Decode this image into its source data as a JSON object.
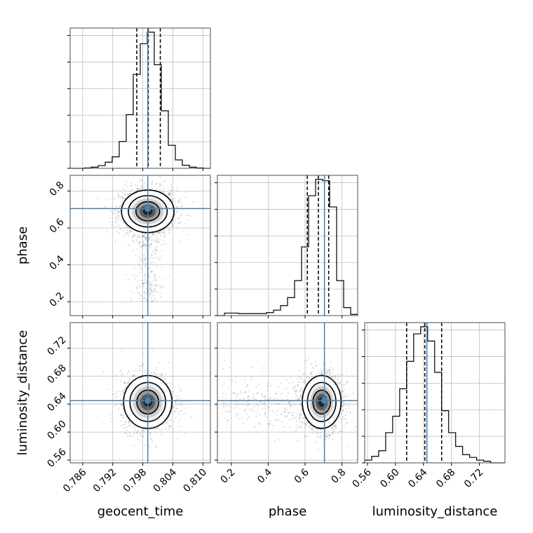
{
  "chart_data": {
    "type": "corner",
    "parameters": [
      "geocent_time",
      "phase",
      "luminosity_distance"
    ],
    "axis_labels": {
      "geocent_time": "geocent_time",
      "phase": "phase",
      "luminosity_distance": "luminosity_distance"
    },
    "ranges": {
      "geocent_time": [
        0.7835,
        0.8115
      ],
      "phase": [
        0.125,
        0.885
      ],
      "luminosity_distance": [
        0.556,
        0.7565
      ]
    },
    "ticks": {
      "geocent_time": {
        "values": [
          0.786,
          0.792,
          0.798,
          0.804,
          0.81
        ],
        "labels": [
          "0.786",
          "0.792",
          "0.798",
          "0.804",
          "0.810"
        ]
      },
      "phase": {
        "values": [
          0.2,
          0.4,
          0.6,
          0.8
        ],
        "labels": [
          "0.2",
          "0.4",
          "0.6",
          "0.8"
        ]
      },
      "luminosity_distance": {
        "values": [
          0.56,
          0.6,
          0.64,
          0.68,
          0.72
        ],
        "labels": [
          "0.56",
          "0.60",
          "0.64",
          "0.68",
          "0.72"
        ]
      }
    },
    "truths": {
      "geocent_time": 0.799,
      "phase": 0.705,
      "luminosity_distance": 0.645
    },
    "quantiles": {
      "geocent_time": [
        0.7968,
        0.7991,
        0.8015
      ],
      "phase": [
        0.612,
        0.672,
        0.728
      ],
      "luminosity_distance": [
        0.616,
        0.642,
        0.666
      ]
    },
    "histograms": {
      "geocent_time": {
        "edges": [
          0.7835,
          0.7849,
          0.7863,
          0.7877,
          0.7891,
          0.7905,
          0.7919,
          0.7933,
          0.7947,
          0.7961,
          0.7975,
          0.7989,
          0.8003,
          0.8017,
          0.8031,
          0.8045,
          0.8059,
          0.8073,
          0.8087,
          0.8101,
          0.8115
        ],
        "counts": [
          0,
          0,
          1,
          3,
          7,
          16,
          30,
          70,
          140,
          245,
          325,
          355,
          270,
          150,
          60,
          22,
          8,
          3,
          1,
          0
        ]
      },
      "phase": {
        "edges": [
          0.125,
          0.163,
          0.201,
          0.239,
          0.277,
          0.315,
          0.353,
          0.391,
          0.429,
          0.467,
          0.505,
          0.543,
          0.581,
          0.619,
          0.657,
          0.695,
          0.733,
          0.771,
          0.809,
          0.847,
          0.885
        ],
        "counts": [
          0,
          10,
          10,
          8,
          8,
          8,
          8,
          12,
          22,
          40,
          72,
          140,
          275,
          480,
          545,
          540,
          435,
          140,
          32,
          5
        ]
      },
      "luminosity_distance": {
        "edges": [
          0.556,
          0.566,
          0.576,
          0.586,
          0.596,
          0.606,
          0.616,
          0.626,
          0.636,
          0.646,
          0.656,
          0.666,
          0.676,
          0.686,
          0.696,
          0.706,
          0.716,
          0.726,
          0.736,
          0.746,
          0.756
        ],
        "counts": [
          5,
          12,
          22,
          55,
          85,
          135,
          185,
          235,
          248,
          222,
          165,
          95,
          55,
          30,
          15,
          10,
          5,
          3,
          0,
          0
        ]
      }
    },
    "density_2d": [
      {
        "x": "geocent_time",
        "y": "phase",
        "center": [
          0.799,
          0.69
        ],
        "sigma": [
          0.0025,
          0.055
        ],
        "tail": {
          "y_range": [
            0.2,
            0.6
          ],
          "sigma_x": 0.0015
        }
      },
      {
        "x": "geocent_time",
        "y": "luminosity_distance",
        "center": [
          0.799,
          0.643
        ],
        "sigma": [
          0.0023,
          0.018
        ]
      },
      {
        "x": "phase",
        "y": "luminosity_distance",
        "center": [
          0.69,
          0.643
        ],
        "sigma": [
          0.05,
          0.018
        ],
        "tail": {
          "x_range": [
            0.15,
            0.6
          ],
          "sigma_y": 0.02
        }
      }
    ],
    "colors": {
      "truth": "#4682b4",
      "hist": "#000000",
      "quantile": "#000000",
      "grid": "#bdbdbd"
    }
  }
}
